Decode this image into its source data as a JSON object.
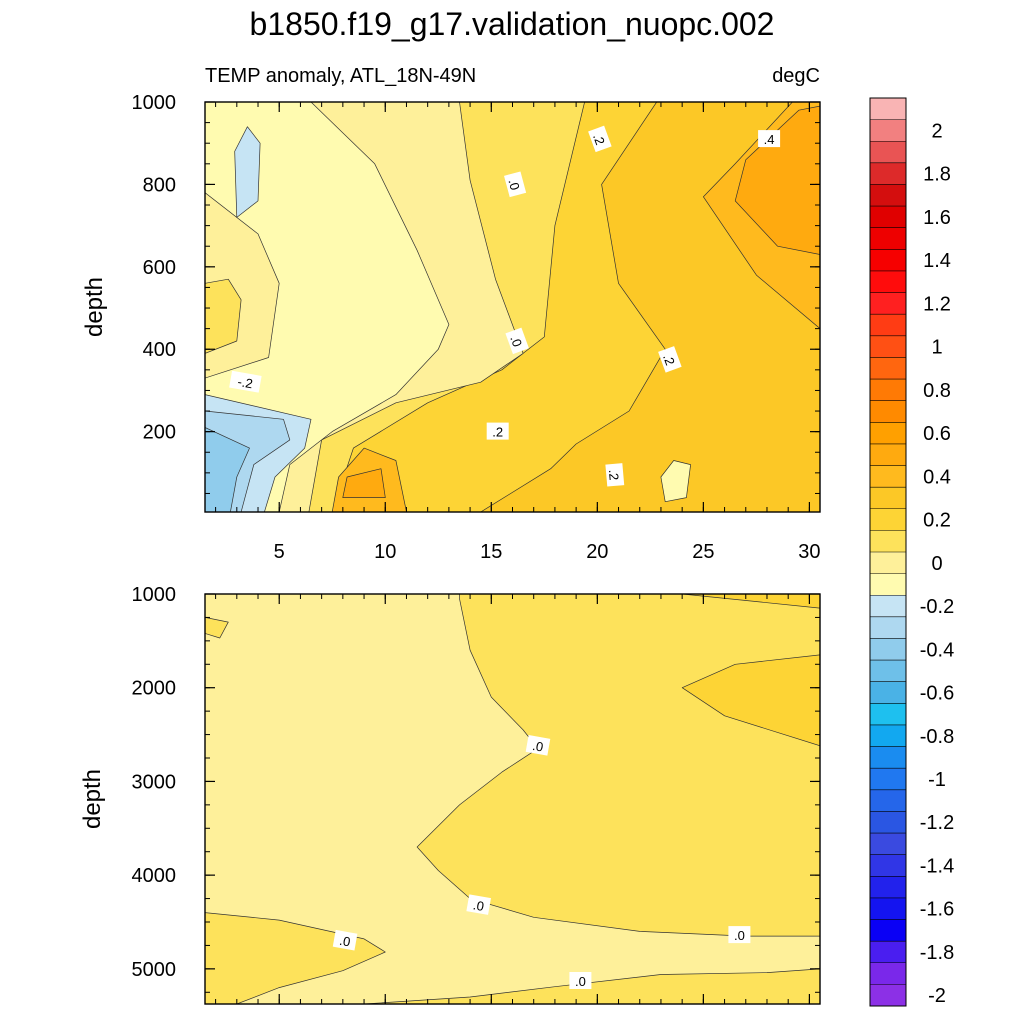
{
  "title": "b1850.f19_g17.validation_nuopc.002",
  "colors": {
    "zero_contour_negative_side": "#c6e4f4",
    "axis": "#000000",
    "contour_line": "#333333"
  },
  "chart_data": [
    {
      "type": "heatmap",
      "panel": "upper",
      "subtitle_left": "TEMP anomaly, ATL_18N-49N",
      "subtitle_right": "degC",
      "xlabel": "",
      "ylabel": "depth",
      "xlim": [
        1.5,
        30.5
      ],
      "ylim": [
        1000,
        5
      ],
      "x_ticks": [
        "5",
        "10",
        "15",
        "20",
        "25",
        "30"
      ],
      "y_ticks": [
        "200",
        "400",
        "600",
        "800",
        "1000"
      ],
      "x_tick_values": [
        5,
        10,
        15,
        20,
        25,
        30
      ],
      "y_tick_values": [
        200,
        400,
        600,
        800,
        1000
      ],
      "x_minor_step": 1,
      "y_minor_step": 50,
      "contour_labels": [
        {
          "text": ".2",
          "x": 20.8,
          "y": 95,
          "angle": 85
        },
        {
          "text": ".2",
          "x": 15.3,
          "y": 200,
          "angle": 0
        },
        {
          "text": "-.2",
          "x": 3.4,
          "y": 320,
          "angle": 10
        },
        {
          "text": ".0",
          "x": 16.2,
          "y": 420,
          "angle": 70
        },
        {
          "text": ".2",
          "x": 23.4,
          "y": 375,
          "angle": 70
        },
        {
          "text": ".0",
          "x": 16.1,
          "y": 800,
          "angle": 75
        },
        {
          "text": ".2",
          "x": 20.1,
          "y": 910,
          "angle": 70
        },
        {
          "text": ".4",
          "x": 28.1,
          "y": 910,
          "angle": 0
        }
      ],
      "regions": [
        {
          "level": 0.05,
          "label": "0 to 0.1",
          "points": [
            [
              1.5,
              5
            ],
            [
              30.5,
              5
            ],
            [
              30.5,
              1000
            ],
            [
              1.5,
              1000
            ]
          ]
        },
        {
          "level": 0.15,
          "label": "0.1 to 0.2",
          "points": [
            [
              9.5,
              5
            ],
            [
              30.5,
              5
            ],
            [
              30.5,
              1000
            ],
            [
              19.4,
              1000
            ],
            [
              18,
              700
            ],
            [
              17.5,
              430
            ],
            [
              15.5,
              350
            ],
            [
              12,
              270
            ],
            [
              8.5,
              160
            ],
            [
              7.5,
              5
            ]
          ]
        },
        {
          "level": 0.25,
          "label": "0.2 to 0.3",
          "points": [
            [
              14.5,
              5
            ],
            [
              30.5,
              5
            ],
            [
              30.5,
              1000
            ],
            [
              22.8,
              1000
            ],
            [
              20.2,
              800
            ],
            [
              21,
              560
            ],
            [
              23.2,
              400
            ],
            [
              21.5,
              250
            ],
            [
              19,
              170
            ],
            [
              17.8,
              110
            ]
          ]
        },
        {
          "level": 0.35,
          "label": "0.3 to 0.4",
          "points": [
            [
              30.5,
              450
            ],
            [
              30.5,
              1000
            ],
            [
              29.2,
              1000
            ],
            [
              26.5,
              850
            ],
            [
              25,
              770
            ],
            [
              27.5,
              580
            ]
          ]
        },
        {
          "level": 0.45,
          "label": "0.4 to 0.5",
          "points": [
            [
              30.5,
              630
            ],
            [
              30.5,
              990
            ],
            [
              29.5,
              980
            ],
            [
              27,
              860
            ],
            [
              26.5,
              760
            ],
            [
              28.5,
              650
            ]
          ]
        },
        {
          "level": 0.35,
          "label": "0.3 to 0.4",
          "points": [
            [
              7.5,
              5
            ],
            [
              11,
              5
            ],
            [
              10.5,
              130
            ],
            [
              9,
              160
            ],
            [
              7.8,
              90
            ]
          ]
        },
        {
          "level": 0.45,
          "label": "0.4 to 0.5",
          "points": [
            [
              8,
              40
            ],
            [
              10,
              40
            ],
            [
              9.8,
              110
            ],
            [
              8.2,
              90
            ]
          ]
        },
        {
          "level": -0.05,
          "label": "-0.1 to 0",
          "points": [
            [
              1.5,
              5
            ],
            [
              6.4,
              5
            ],
            [
              7,
              180
            ],
            [
              10.5,
              270
            ],
            [
              14.5,
              320
            ],
            [
              16.5,
              390
            ],
            [
              15.2,
              570
            ],
            [
              14,
              810
            ],
            [
              13.5,
              1000
            ],
            [
              1.5,
              1000
            ]
          ]
        },
        {
          "level": -0.15,
          "label": "-0.2 to -0.1",
          "points": [
            [
              1.5,
              5
            ],
            [
              5,
              5
            ],
            [
              5.5,
              120
            ],
            [
              7.5,
              200
            ],
            [
              10.5,
              290
            ],
            [
              12.5,
              400
            ],
            [
              13,
              460
            ],
            [
              11.5,
              640
            ],
            [
              9.5,
              850
            ],
            [
              6.5,
              1000
            ],
            [
              1.5,
              1000
            ],
            [
              1.5,
              780
            ],
            [
              4,
              680
            ],
            [
              5,
              560
            ],
            [
              4.5,
              380
            ],
            [
              1.5,
              330
            ]
          ]
        },
        {
          "level": -0.25,
          "label": "-0.3 to -0.2",
          "points": [
            [
              1.5,
              5
            ],
            [
              4.3,
              5
            ],
            [
              4.8,
              90
            ],
            [
              6.2,
              160
            ],
            [
              6.5,
              230
            ],
            [
              1.5,
              290
            ]
          ]
        },
        {
          "level": -0.35,
          "label": "-0.4 to -0.3",
          "points": [
            [
              1.5,
              5
            ],
            [
              3.2,
              5
            ],
            [
              3.8,
              120
            ],
            [
              5.5,
              180
            ],
            [
              5.2,
              230
            ],
            [
              1.5,
              250
            ]
          ]
        },
        {
          "level": -0.45,
          "label": "-0.5 to -0.4",
          "points": [
            [
              1.5,
              5
            ],
            [
              2.7,
              5
            ],
            [
              3,
              90
            ],
            [
              3.6,
              160
            ],
            [
              1.5,
              210
            ]
          ]
        },
        {
          "level": -0.25,
          "label": "-0.3 to -0.2",
          "points": [
            [
              3,
              720
            ],
            [
              4,
              760
            ],
            [
              4.1,
              900
            ],
            [
              3.5,
              940
            ],
            [
              2.9,
              880
            ]
          ]
        },
        {
          "level": -0.15,
          "label": "-0.2 to -0.1",
          "points": [
            [
              23.2,
              30
            ],
            [
              24.2,
              40
            ],
            [
              24.4,
              120
            ],
            [
              23.6,
              130
            ],
            [
              23,
              90
            ]
          ]
        },
        {
          "level": 0.05,
          "label": "0 to 0.1",
          "points": [
            [
              1.5,
              390
            ],
            [
              3,
              420
            ],
            [
              3.2,
              520
            ],
            [
              2.6,
              570
            ],
            [
              1.5,
              560
            ]
          ]
        }
      ]
    },
    {
      "type": "heatmap",
      "panel": "lower",
      "xlabel": "",
      "ylabel": "depth",
      "xlim": [
        1.5,
        30.5
      ],
      "ylim": [
        1000,
        5375
      ],
      "y_ticks": [
        "1000",
        "2000",
        "3000",
        "4000",
        "5000"
      ],
      "y_tick_values": [
        1000,
        2000,
        3000,
        4000,
        5000
      ],
      "x_tick_values": [
        5,
        10,
        15,
        20,
        25,
        30
      ],
      "x_minor_step": 1,
      "y_minor_step": 250,
      "contour_labels": [
        {
          "text": ".0",
          "x": 17.2,
          "y": 2620,
          "angle": 10
        },
        {
          "text": ".0",
          "x": 14.4,
          "y": 4320,
          "angle": 10
        },
        {
          "text": ".0",
          "x": 26.7,
          "y": 4640,
          "angle": 0
        },
        {
          "text": ".0",
          "x": 8.1,
          "y": 4700,
          "angle": 10
        },
        {
          "text": ".0",
          "x": 19.2,
          "y": 5130,
          "angle": 0
        }
      ],
      "regions": [
        {
          "level": -0.05,
          "label": "-0.1 to 0",
          "points": [
            [
              1.5,
              1000
            ],
            [
              30.5,
              1000
            ],
            [
              30.5,
              5375
            ],
            [
              1.5,
              5375
            ]
          ]
        },
        {
          "level": 0.05,
          "label": "0 to 0.1",
          "points": [
            [
              13.5,
              1000
            ],
            [
              30.5,
              1000
            ],
            [
              30.5,
              4650
            ],
            [
              27,
              4650
            ],
            [
              22,
              4600
            ],
            [
              17,
              4450
            ],
            [
              14,
              4250
            ],
            [
              12.5,
              3950
            ],
            [
              11.5,
              3700
            ],
            [
              13.5,
              3250
            ],
            [
              15.5,
              2900
            ],
            [
              17.2,
              2650
            ],
            [
              16.5,
              2450
            ],
            [
              15,
              2100
            ],
            [
              14,
              1600
            ],
            [
              13.5,
              1050
            ]
          ]
        },
        {
          "level": 0.15,
          "label": "0.1 to 0.2",
          "points": [
            [
              30.5,
              1000
            ],
            [
              30.5,
              1150
            ],
            [
              24,
              1000
            ]
          ]
        },
        {
          "level": 0.15,
          "label": "0.1 to 0.2",
          "points": [
            [
              30.5,
              1650
            ],
            [
              30.5,
              2620
            ],
            [
              26,
              2300
            ],
            [
              24,
              2000
            ],
            [
              26.5,
              1750
            ]
          ]
        },
        {
          "level": 0.05,
          "label": "0 to 0.1",
          "points": [
            [
              1.5,
              4400
            ],
            [
              5,
              4480
            ],
            [
              9,
              4680
            ],
            [
              10,
              4820
            ],
            [
              8,
              5020
            ],
            [
              5,
              5200
            ],
            [
              3,
              5375
            ],
            [
              1.5,
              5375
            ]
          ]
        },
        {
          "level": 0.05,
          "label": "0 to 0.1",
          "points": [
            [
              9,
              5375
            ],
            [
              14,
              5300
            ],
            [
              18,
              5190
            ],
            [
              23,
              5060
            ],
            [
              28,
              5040
            ],
            [
              30.5,
              5000
            ],
            [
              30.5,
              5375
            ]
          ]
        },
        {
          "level": 0.05,
          "label": "0 to 0.1",
          "points": [
            [
              1.5,
              1250
            ],
            [
              2.6,
              1300
            ],
            [
              2.2,
              1470
            ],
            [
              1.5,
              1420
            ]
          ]
        }
      ]
    }
  ],
  "colorbar": {
    "tick_labels": [
      "2",
      "1.8",
      "1.6",
      "1.4",
      "1.2",
      "1",
      "0.8",
      "0.6",
      "0.4",
      "0.2",
      "0",
      "-0.2",
      "-0.4",
      "-0.6",
      "-0.8",
      "-1",
      "-1.2",
      "-1.4",
      "-1.6",
      "-1.8",
      "-2"
    ],
    "tick_values": [
      2,
      1.8,
      1.6,
      1.4,
      1.2,
      1,
      0.8,
      0.6,
      0.4,
      0.2,
      0,
      -0.2,
      -0.4,
      -0.6,
      -0.8,
      -1,
      -1.2,
      -1.4,
      -1.6,
      -1.8,
      -2
    ],
    "levels_min": -2.1,
    "levels_max": 2.1,
    "step": 0.1,
    "colors_top_to_bottom": [
      "#f9b4b4",
      "#f28080",
      "#e95454",
      "#dd2a2a",
      "#d40e0e",
      "#e00000",
      "#ee0000",
      "#f60000",
      "#ff0c0c",
      "#ff2020",
      "#ff3c14",
      "#ff5014",
      "#ff660f",
      "#ff7a05",
      "#ff8a00",
      "#ffa000",
      "#ffaa0f",
      "#ffba1e",
      "#fcc826",
      "#fdd435",
      "#fde25b",
      "#fef09a",
      "#fffbb0",
      "#c6e4f4",
      "#aed8f0",
      "#90ccec",
      "#6ec0e9",
      "#4ab2e6",
      "#1ec0ef",
      "#12a8f0",
      "#1a8cf0",
      "#2078f0",
      "#2566ea",
      "#2a56e3",
      "#3a4ae0",
      "#3036e6",
      "#2222ec",
      "#1414f0",
      "#0a00f5",
      "#4a1ef0",
      "#7a28ea",
      "#8c30e6"
    ]
  }
}
